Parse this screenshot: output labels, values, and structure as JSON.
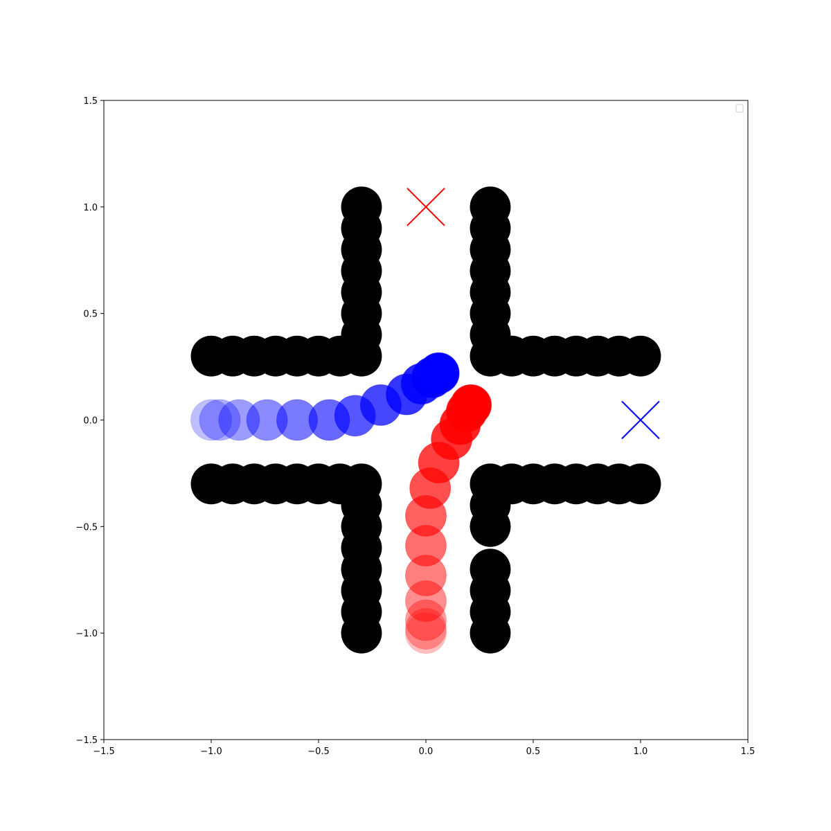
{
  "chart_data": {
    "type": "scatter",
    "title": "",
    "xlabel": "",
    "ylabel": "",
    "xlim": [
      -1.5,
      1.5
    ],
    "ylim": [
      -1.5,
      1.5
    ],
    "grid": false,
    "legend": {
      "placement": "top-right",
      "entries": []
    },
    "x_ticks": [
      {
        "value": -1.5,
        "label": "−1.5"
      },
      {
        "value": -1.0,
        "label": "−1.0"
      },
      {
        "value": -0.5,
        "label": "−0.5"
      },
      {
        "value": 0.0,
        "label": "0.0"
      },
      {
        "value": 0.5,
        "label": "0.5"
      },
      {
        "value": 1.0,
        "label": "1.0"
      },
      {
        "value": 1.5,
        "label": "1.5"
      }
    ],
    "y_ticks": [
      {
        "value": -1.5,
        "label": "−1.5"
      },
      {
        "value": -1.0,
        "label": "−1.0"
      },
      {
        "value": -0.5,
        "label": "−0.5"
      },
      {
        "value": 0.0,
        "label": "0.0"
      },
      {
        "value": 0.5,
        "label": "0.5"
      },
      {
        "value": 1.0,
        "label": "1.0"
      },
      {
        "value": 1.5,
        "label": "1.5"
      }
    ],
    "marker_radius": 0.095,
    "obstacles": {
      "color": "#000000",
      "points": [
        [
          -1.0,
          0.3
        ],
        [
          -0.9,
          0.3
        ],
        [
          -0.8,
          0.3
        ],
        [
          -0.7,
          0.3
        ],
        [
          -0.6,
          0.3
        ],
        [
          -0.5,
          0.3
        ],
        [
          -0.4,
          0.3
        ],
        [
          -0.3,
          0.3
        ],
        [
          -0.3,
          0.4
        ],
        [
          -0.3,
          0.5
        ],
        [
          -0.3,
          0.6
        ],
        [
          -0.3,
          0.7
        ],
        [
          -0.3,
          0.8
        ],
        [
          -0.3,
          0.9
        ],
        [
          -0.3,
          1.0
        ],
        [
          0.3,
          0.3
        ],
        [
          0.4,
          0.3
        ],
        [
          0.5,
          0.3
        ],
        [
          0.6,
          0.3
        ],
        [
          0.7,
          0.3
        ],
        [
          0.8,
          0.3
        ],
        [
          0.9,
          0.3
        ],
        [
          1.0,
          0.3
        ],
        [
          0.3,
          0.4
        ],
        [
          0.3,
          0.5
        ],
        [
          0.3,
          0.6
        ],
        [
          0.3,
          0.7
        ],
        [
          0.3,
          0.8
        ],
        [
          0.3,
          0.9
        ],
        [
          0.3,
          1.0
        ],
        [
          -1.0,
          -0.3
        ],
        [
          -0.9,
          -0.3
        ],
        [
          -0.8,
          -0.3
        ],
        [
          -0.7,
          -0.3
        ],
        [
          -0.6,
          -0.3
        ],
        [
          -0.5,
          -0.3
        ],
        [
          -0.4,
          -0.3
        ],
        [
          -0.3,
          -0.3
        ],
        [
          -0.3,
          -0.4
        ],
        [
          -0.3,
          -0.5
        ],
        [
          -0.3,
          -0.6
        ],
        [
          -0.3,
          -0.7
        ],
        [
          -0.3,
          -0.8
        ],
        [
          -0.3,
          -0.9
        ],
        [
          -0.3,
          -1.0
        ],
        [
          0.3,
          -0.3
        ],
        [
          0.4,
          -0.3
        ],
        [
          0.5,
          -0.3
        ],
        [
          0.6,
          -0.3
        ],
        [
          0.7,
          -0.3
        ],
        [
          0.8,
          -0.3
        ],
        [
          0.9,
          -0.3
        ],
        [
          1.0,
          -0.3
        ],
        [
          0.3,
          -0.4
        ],
        [
          0.3,
          -0.5
        ],
        [
          0.3,
          -0.7
        ],
        [
          0.3,
          -0.8
        ],
        [
          0.3,
          -0.9
        ],
        [
          0.3,
          -1.0
        ]
      ]
    },
    "agents": [
      {
        "color": "#0000ff",
        "goal": [
          1.0,
          0.0
        ],
        "trajectory": [
          [
            -1.0,
            0.0
          ],
          [
            -0.96,
            0.0
          ],
          [
            -0.87,
            0.0
          ],
          [
            -0.74,
            0.0
          ],
          [
            -0.6,
            0.0
          ],
          [
            -0.45,
            0.0
          ],
          [
            -0.33,
            0.02
          ],
          [
            -0.21,
            0.07
          ],
          [
            -0.09,
            0.12
          ],
          [
            -0.02,
            0.17
          ],
          [
            0.03,
            0.2
          ],
          [
            0.06,
            0.22
          ]
        ],
        "opacity_start": 0.25,
        "opacity_end": 1.0
      },
      {
        "color": "#ff0000",
        "goal": [
          0.0,
          1.0
        ],
        "trajectory": [
          [
            0.0,
            -1.0
          ],
          [
            0.0,
            -0.98
          ],
          [
            0.0,
            -0.94
          ],
          [
            0.0,
            -0.85
          ],
          [
            0.0,
            -0.73
          ],
          [
            0.0,
            -0.59
          ],
          [
            0.0,
            -0.45
          ],
          [
            0.02,
            -0.32
          ],
          [
            0.06,
            -0.2
          ],
          [
            0.12,
            -0.09
          ],
          [
            0.16,
            -0.02
          ],
          [
            0.19,
            0.04
          ],
          [
            0.21,
            0.07
          ]
        ],
        "opacity_start": 0.25,
        "opacity_end": 1.0
      }
    ]
  }
}
